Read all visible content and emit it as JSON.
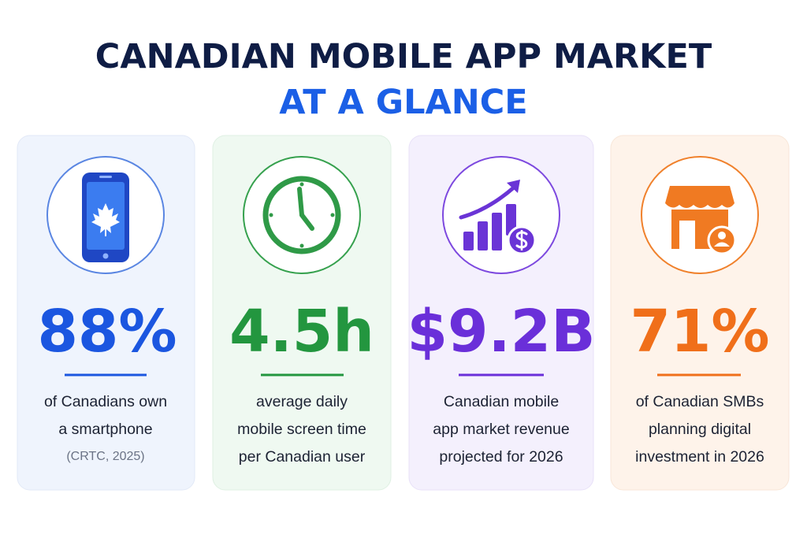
{
  "header": {
    "title_line1": "CANADIAN MOBILE APP MARKET",
    "title_line2": "AT A GLANCE"
  },
  "cards": [
    {
      "stat": "88%",
      "description": [
        "of Canadians own",
        "a smartphone"
      ],
      "source": "(CRTC, 2025)"
    },
    {
      "stat": "4.5h",
      "description": [
        "average daily",
        "mobile screen time",
        "per Canadian user"
      ]
    },
    {
      "stat": "$9.2B",
      "description": [
        "Canadian mobile",
        "app market revenue",
        "projected for 2026"
      ]
    },
    {
      "stat": "71%",
      "description": [
        "of Canadian SMBs",
        "planning digital",
        "investment in 2026"
      ]
    }
  ]
}
